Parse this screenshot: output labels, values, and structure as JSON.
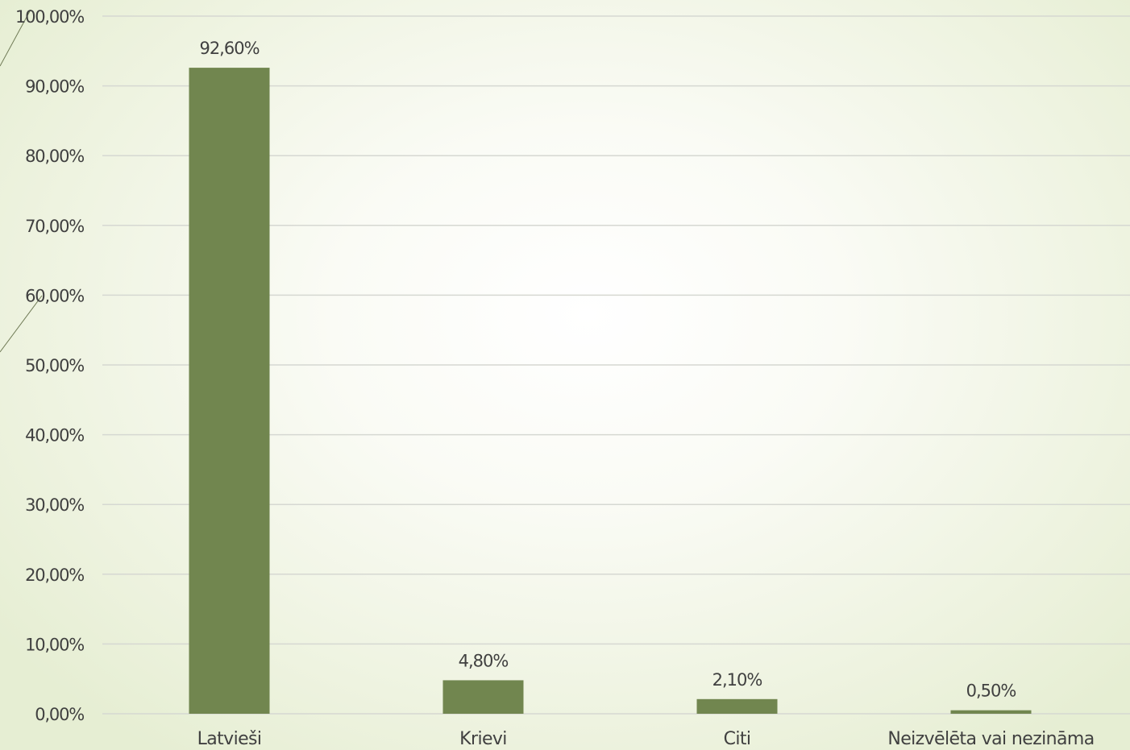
{
  "chart_data": {
    "type": "bar",
    "title": "",
    "xlabel": "",
    "ylabel": "",
    "categories": [
      "Latvieši",
      "Krievi",
      "Citi",
      "Neizvēlēta vai nezināma"
    ],
    "values": [
      92.6,
      4.8,
      2.1,
      0.5
    ],
    "value_labels": [
      "92,60%",
      "4,80%",
      "2,10%",
      "0,50%"
    ],
    "y_ticks": [
      0,
      10,
      20,
      30,
      40,
      50,
      60,
      70,
      80,
      90,
      100
    ],
    "y_tick_labels": [
      "0,00%",
      "10,00%",
      "20,00%",
      "30,00%",
      "40,00%",
      "50,00%",
      "60,00%",
      "70,00%",
      "80,00%",
      "90,00%",
      "100,00%"
    ],
    "ylim": [
      0,
      100
    ],
    "grid": true,
    "legend": "none",
    "colors": {
      "bar": "#71864f",
      "grid": "#d6d8d2",
      "text": "#404040",
      "decor_line": "#6f7a55"
    }
  }
}
